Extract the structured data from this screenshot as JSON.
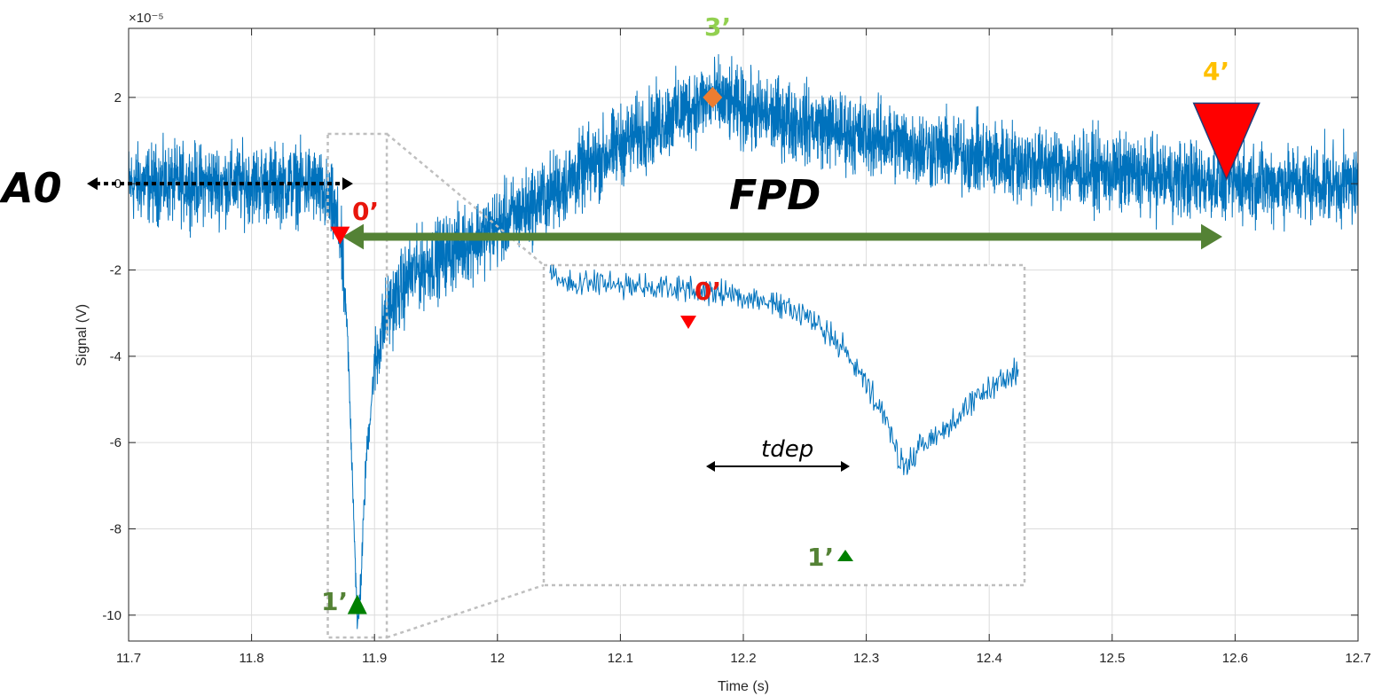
{
  "chart_data": {
    "type": "line",
    "title": "",
    "xlabel": "Time (s)",
    "ylabel": "Signal (V)",
    "y_exponent": "×10⁻⁵",
    "xlim": [
      11.7,
      12.7
    ],
    "ylim": [
      -10.6,
      3.6
    ],
    "grid": true,
    "x_ticks": [
      11.7,
      11.8,
      11.9,
      12,
      12.1,
      12.2,
      12.3,
      12.4,
      12.5,
      12.6,
      12.7
    ],
    "x_tick_labels": [
      "11.7",
      "11.8",
      "11.9",
      "12",
      "12.1",
      "12.2",
      "12.3",
      "12.4",
      "12.5",
      "12.6",
      "12.7"
    ],
    "y_ticks": [
      2,
      0,
      -2,
      -4,
      -6,
      -8,
      -10
    ],
    "y_tick_labels": [
      "2",
      "0",
      "-2",
      "-4",
      "-6",
      "-8",
      "-10"
    ],
    "series_color": "#0072bd",
    "series": [
      {
        "name": "",
        "x": [
          11.7,
          11.75,
          11.8,
          11.85,
          11.865,
          11.872,
          11.878,
          11.883,
          11.886,
          11.889,
          11.893,
          11.9,
          11.91,
          11.93,
          11.96,
          12.0,
          12.05,
          12.1,
          12.15,
          12.175,
          12.2,
          12.25,
          12.3,
          12.35,
          12.4,
          12.45,
          12.5,
          12.55,
          12.6,
          12.65,
          12.7
        ],
        "y": [
          0,
          0,
          0,
          0,
          -0.5,
          -1.2,
          -3.5,
          -7.5,
          -10.3,
          -9.2,
          -6.5,
          -4.2,
          -3.0,
          -2.1,
          -1.6,
          -1.0,
          -0.1,
          0.9,
          1.7,
          2.0,
          1.7,
          1.4,
          1.1,
          0.8,
          0.6,
          0.4,
          0.25,
          0.12,
          0.05,
          0.0,
          0.0
        ],
        "noise_amplitude": 0.55
      }
    ],
    "markers": [
      {
        "label": "0’",
        "x": 11.872,
        "y": -1.2,
        "shape": "triangle-down",
        "color": "#ff0000",
        "label_color": "#e8160c"
      },
      {
        "label": "1’",
        "x": 11.886,
        "y": -9.75,
        "shape": "triangle-up",
        "color": "#008000",
        "label_color": "#548235"
      },
      {
        "label": "3’",
        "x": 12.175,
        "y": 2.0,
        "shape": "diamond",
        "color": "#ed7d31",
        "label_color": "#92d050"
      },
      {
        "label": "4’",
        "x": 12.593,
        "y": 0.1,
        "shape": "triangle-down-large",
        "color": "#ff0000",
        "label_color": "#ffc000"
      }
    ],
    "annotations": {
      "a0_label": "A0",
      "fpd_label": "FPD",
      "tdep_label": "tdep",
      "fpd_color": "#548235"
    },
    "inset": {
      "x_range": [
        11.862,
        11.91
      ],
      "zoomed_x_range": [
        11.855,
        11.894
      ],
      "zoomed_y_range": [
        -10.0,
        0.3
      ],
      "points": [
        {
          "t": 0.0,
          "v": 0.15
        },
        {
          "t": 0.15,
          "v": -0.05
        },
        {
          "t": 0.3,
          "v": -0.2
        },
        {
          "t": 0.45,
          "v": -0.5
        },
        {
          "t": 0.55,
          "v": -1.1
        },
        {
          "t": 0.62,
          "v": -2.0
        },
        {
          "t": 0.67,
          "v": -3.2
        },
        {
          "t": 0.72,
          "v": -4.6
        },
        {
          "t": 0.74,
          "v": -5.6
        },
        {
          "t": 0.76,
          "v": -6.0
        },
        {
          "t": 0.8,
          "v": -5.3
        },
        {
          "t": 0.86,
          "v": -4.6
        },
        {
          "t": 0.93,
          "v": -3.6
        },
        {
          "t": 1.0,
          "v": -2.9
        }
      ]
    }
  }
}
